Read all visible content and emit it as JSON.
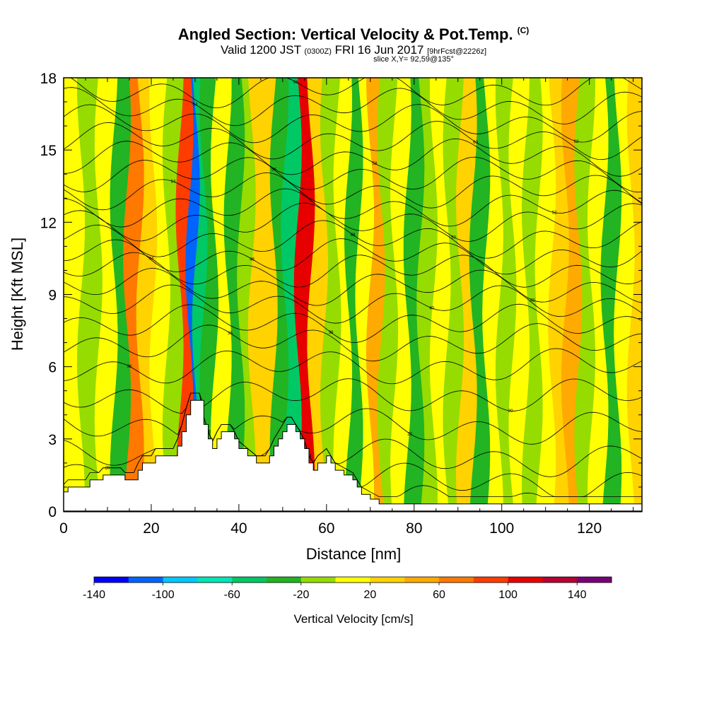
{
  "title": {
    "main": "Angled Section: Vertical Velocity & Pot.Temp.",
    "copyright": "(C)",
    "valid_prefix": "Valid 1200 JST",
    "valid_utc": "(0300Z)",
    "valid_date": "FRI 16 Jun 2017",
    "forecast": "[9hrFcst@2226z]",
    "slice": "slice X,Y= 92,59@135°"
  },
  "colorbar": {
    "label": "Vertical Velocity [cm/s]",
    "levels": [
      -140,
      -120,
      -100,
      -80,
      -60,
      -40,
      -20,
      0,
      20,
      40,
      60,
      80,
      100,
      120,
      140,
      160
    ],
    "tick_labels": [
      "-140",
      "-100",
      "-60",
      "-20",
      "20",
      "60",
      "100",
      "140"
    ],
    "colors": [
      "#0000ff",
      "#0064ff",
      "#00c8ff",
      "#00e6b4",
      "#00c864",
      "#22b422",
      "#96dc00",
      "#ffff00",
      "#ffd200",
      "#ffaa00",
      "#ff7800",
      "#ff3c00",
      "#e60000",
      "#b40032",
      "#780078"
    ]
  },
  "chart_data": {
    "type": "heatmap",
    "title": "Angled Section: Vertical Velocity & Pot.Temp.",
    "xlabel": "Distance [nm]",
    "ylabel": "Height [Kft MSL]",
    "xlim": [
      0,
      132
    ],
    "ylim": [
      0,
      18
    ],
    "x_ticks": [
      0,
      20,
      40,
      60,
      80,
      100,
      120
    ],
    "y_ticks": [
      0,
      3,
      6,
      9,
      12,
      15,
      18
    ],
    "x_tick_labels": [
      "0",
      "20",
      "40",
      "60",
      "80",
      "100",
      "120"
    ],
    "y_tick_labels": [
      "0",
      "3",
      "6",
      "9",
      "12",
      "15",
      "18"
    ],
    "grid": false,
    "terrain": [
      [
        0,
        0.8
      ],
      [
        1,
        1
      ],
      [
        5,
        1
      ],
      [
        6,
        1.3
      ],
      [
        8,
        1.3
      ],
      [
        9,
        1.5
      ],
      [
        13,
        1.5
      ],
      [
        14,
        1.3
      ],
      [
        16,
        1.3
      ],
      [
        17,
        1.7
      ],
      [
        18,
        2
      ],
      [
        20,
        2
      ],
      [
        21,
        2.3
      ],
      [
        25,
        2.3
      ],
      [
        26,
        2.7
      ],
      [
        27,
        3.3
      ],
      [
        28,
        4
      ],
      [
        29,
        4.6
      ],
      [
        31,
        4.6
      ],
      [
        32,
        3.6
      ],
      [
        33,
        3
      ],
      [
        34,
        2.6
      ],
      [
        35,
        3
      ],
      [
        36,
        3.3
      ],
      [
        38,
        3.3
      ],
      [
        39,
        3
      ],
      [
        40,
        2.6
      ],
      [
        42,
        2.3
      ],
      [
        44,
        2
      ],
      [
        46,
        2
      ],
      [
        47,
        2.3
      ],
      [
        48,
        2.7
      ],
      [
        49,
        3
      ],
      [
        50,
        3.3
      ],
      [
        51,
        3.6
      ],
      [
        52,
        3.6
      ],
      [
        53,
        3.3
      ],
      [
        54,
        3
      ],
      [
        55,
        2.6
      ],
      [
        56,
        2
      ],
      [
        57,
        1.7
      ],
      [
        58,
        2
      ],
      [
        60,
        2.3
      ],
      [
        61,
        2
      ],
      [
        62,
        1.7
      ],
      [
        64,
        1.5
      ],
      [
        66,
        1.3
      ],
      [
        67,
        1
      ],
      [
        68,
        0.7
      ],
      [
        70,
        0.5
      ],
      [
        72,
        0.3
      ],
      [
        132,
        0.3
      ]
    ],
    "velocity_bands": [
      {
        "x": 2,
        "v": 10
      },
      {
        "x": 6,
        "v": -10
      },
      {
        "x": 10,
        "v": 10
      },
      {
        "x": 13,
        "v": -30
      },
      {
        "x": 16,
        "v": 70
      },
      {
        "x": 19,
        "v": 20
      },
      {
        "x": 22,
        "v": 10
      },
      {
        "x": 25,
        "v": -10
      },
      {
        "x": 28,
        "v": 90
      },
      {
        "x": 29.5,
        "v": -110
      },
      {
        "x": 31,
        "v": -50
      },
      {
        "x": 33,
        "v": -30
      },
      {
        "x": 36,
        "v": 10
      },
      {
        "x": 39,
        "v": -30
      },
      {
        "x": 42,
        "v": -10
      },
      {
        "x": 44,
        "v": 30
      },
      {
        "x": 47,
        "v": 20
      },
      {
        "x": 49,
        "v": -30
      },
      {
        "x": 52,
        "v": -50
      },
      {
        "x": 55,
        "v": 110
      },
      {
        "x": 58,
        "v": 30
      },
      {
        "x": 61,
        "v": -10
      },
      {
        "x": 64,
        "v": 10
      },
      {
        "x": 66,
        "v": -30
      },
      {
        "x": 69,
        "v": 10
      },
      {
        "x": 71,
        "v": 50
      },
      {
        "x": 74,
        "v": -10
      },
      {
        "x": 77,
        "v": 10
      },
      {
        "x": 80,
        "v": -30
      },
      {
        "x": 83,
        "v": -10
      },
      {
        "x": 86,
        "v": 10
      },
      {
        "x": 89,
        "v": -10
      },
      {
        "x": 92,
        "v": 30
      },
      {
        "x": 95,
        "v": -30
      },
      {
        "x": 98,
        "v": 10
      },
      {
        "x": 101,
        "v": -10
      },
      {
        "x": 104,
        "v": 10
      },
      {
        "x": 107,
        "v": -10
      },
      {
        "x": 110,
        "v": 10
      },
      {
        "x": 113,
        "v": 30
      },
      {
        "x": 116,
        "v": 50
      },
      {
        "x": 119,
        "v": -10
      },
      {
        "x": 122,
        "v": 10
      },
      {
        "x": 125,
        "v": -30
      },
      {
        "x": 128,
        "v": 10
      },
      {
        "x": 131,
        "v": 30
      }
    ],
    "pot_temp_contours": {
      "base_heights": [
        0.3,
        1.2,
        2.2,
        3.5,
        4.8,
        6,
        7,
        7.8,
        8.6,
        9.3,
        10,
        10.6,
        11.3,
        12,
        12.6,
        13.3,
        14,
        14.7,
        15.4,
        16.1,
        16.8,
        17.5
      ],
      "labels": [
        "28",
        "26",
        "24",
        "22",
        "20",
        "36",
        "36",
        "38",
        "40",
        "42",
        "44",
        "46",
        "48",
        "50",
        "52",
        "54",
        "56",
        "58",
        "60",
        "62",
        "64",
        "66",
        "68"
      ]
    }
  }
}
